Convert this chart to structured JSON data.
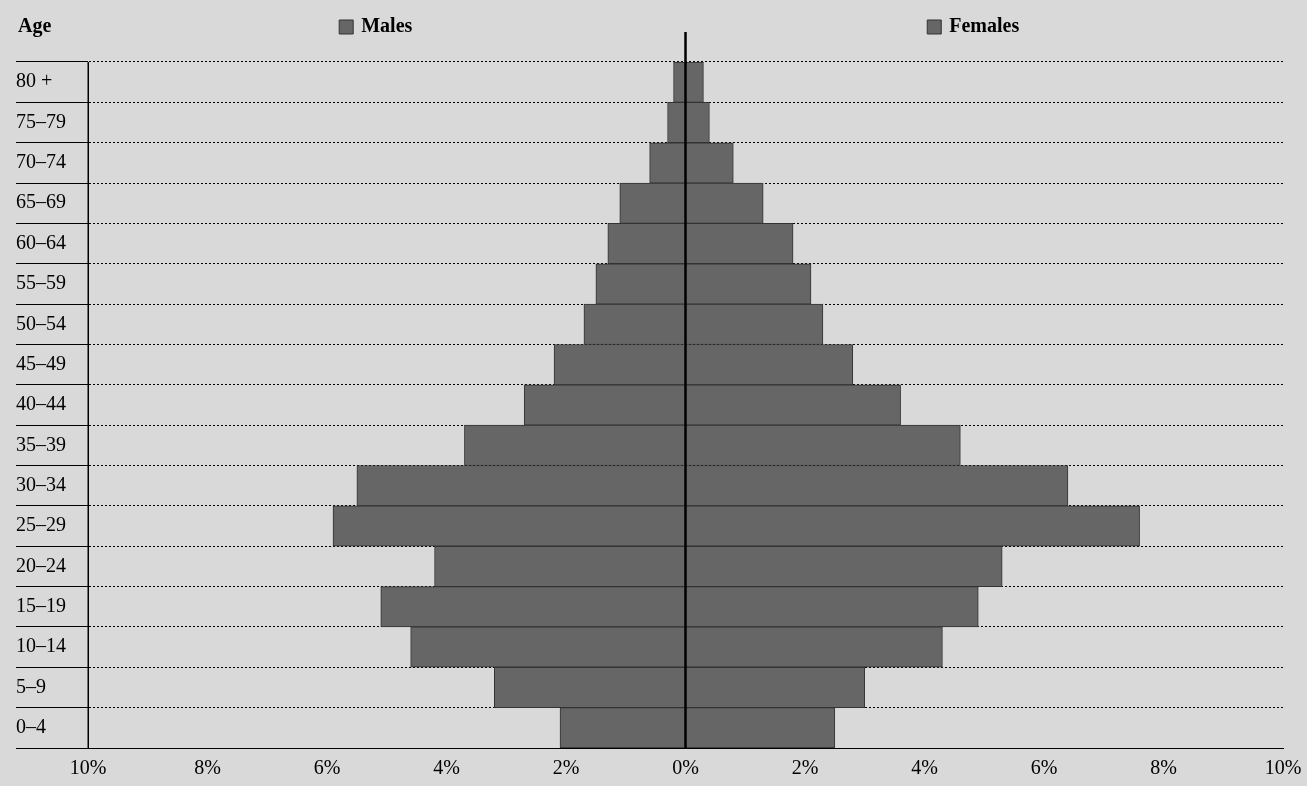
{
  "chart_data": {
    "type": "bar",
    "orientation": "horizontal",
    "ylabel": "Age",
    "categories": [
      "80 +",
      "75–79",
      "70–74",
      "65–69",
      "60–64",
      "55–59",
      "50–54",
      "45–49",
      "40–44",
      "35–39",
      "30–34",
      "25–29",
      "20–24",
      "15–19",
      "10–14",
      "5–9",
      "0–4"
    ],
    "series": [
      {
        "name": "Males",
        "color": "#666666",
        "values": [
          -0.2,
          -0.3,
          -0.6,
          -1.1,
          -1.3,
          -1.5,
          -1.7,
          -2.2,
          -2.7,
          -3.7,
          -5.5,
          -5.9,
          -4.2,
          -5.1,
          -4.6,
          -3.2,
          -2.1
        ]
      },
      {
        "name": "Females",
        "color": "#666666",
        "values": [
          0.3,
          0.4,
          0.8,
          1.3,
          1.8,
          2.1,
          2.3,
          2.8,
          3.6,
          4.6,
          6.4,
          7.6,
          5.3,
          4.9,
          4.3,
          3.0,
          2.5
        ]
      }
    ],
    "xlim": [
      -10,
      10
    ],
    "xticks": [
      {
        "value": -10,
        "label": "10%"
      },
      {
        "value": -8,
        "label": "8%"
      },
      {
        "value": -6,
        "label": "6%"
      },
      {
        "value": -4,
        "label": "4%"
      },
      {
        "value": -2,
        "label": "2%"
      },
      {
        "value": 0,
        "label": "0%"
      },
      {
        "value": 2,
        "label": "2%"
      },
      {
        "value": 4,
        "label": "4%"
      },
      {
        "value": 6,
        "label": "6%"
      },
      {
        "value": 8,
        "label": "8%"
      },
      {
        "value": 10,
        "label": "10%"
      }
    ],
    "ref_lines": [
      {
        "axis": "x",
        "value": 0,
        "color": "#000000"
      }
    ],
    "grid": "y",
    "legend": "top",
    "stacked": true
  }
}
